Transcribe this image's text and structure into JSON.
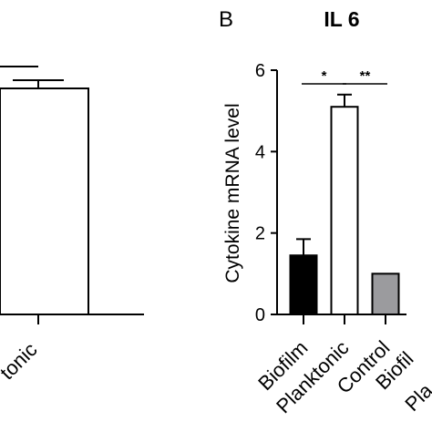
{
  "chart_data": [
    {
      "panel_label": "",
      "type": "bar",
      "title": "",
      "categories": [
        "",
        "tonic"
      ],
      "values": [
        null,
        5.5
      ],
      "errors": [
        null,
        0.3
      ],
      "xlabel": "",
      "ylabel": "",
      "ylim": [
        0,
        6
      ],
      "significance": [
        {
          "from": 0,
          "to": 1,
          "label": ""
        }
      ],
      "colors": [
        "#ffffff",
        "#ffffff"
      ]
    },
    {
      "panel_label": "B",
      "type": "bar",
      "title": "IL 6",
      "categories": [
        "Biofilm",
        "Planktonic",
        "Control"
      ],
      "values": [
        1.45,
        5.1,
        1.0
      ],
      "errors": [
        0.4,
        0.3,
        0.0
      ],
      "colors": [
        "#000000",
        "#ffffff",
        "#9b9b9e"
      ],
      "xlabel": "",
      "ylabel": "Cytokine mRNA level",
      "ylim": [
        0,
        6
      ],
      "yticks": [
        "0",
        "2",
        "4",
        "6"
      ],
      "significance": [
        {
          "from": 0,
          "to": 1,
          "label": "*"
        },
        {
          "from": 1,
          "to": 2,
          "label": "**"
        }
      ],
      "extra_cut_labels": [
        "Biofil",
        "Pla"
      ]
    }
  ]
}
